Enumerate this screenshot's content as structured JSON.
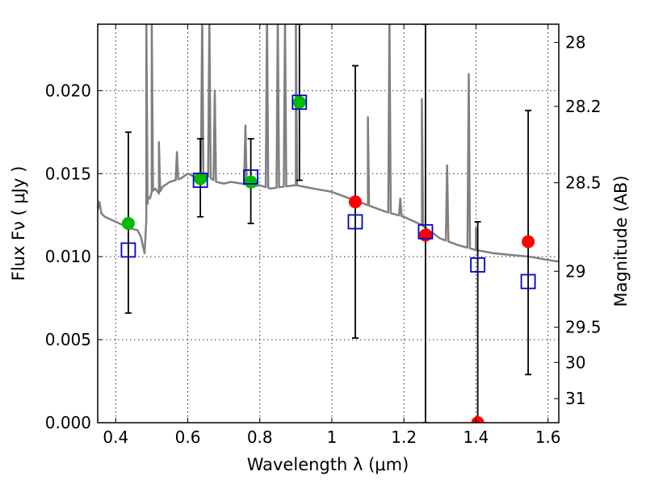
{
  "chart_data": {
    "type": "scatter",
    "title": "",
    "xlabel": "Wavelength  λ (μm)",
    "ylabel": "Flux  Fν  ( μJy )",
    "y2label": "Magnitude (AB)",
    "xlim": [
      0.35,
      1.63
    ],
    "ylim": [
      0.0,
      0.024
    ],
    "grid": true,
    "x_ticks": [
      "0.4",
      "0.6",
      "0.8",
      "1",
      "1.2",
      "1.4",
      "1.6"
    ],
    "x_tick_values": [
      0.4,
      0.6,
      0.8,
      1.0,
      1.2,
      1.4,
      1.6
    ],
    "y_ticks": [
      "0.000",
      "0.005",
      "0.010",
      "0.015",
      "0.020"
    ],
    "y_tick_values": [
      0.0,
      0.005,
      0.01,
      0.015,
      0.02
    ],
    "y2_ticks": [
      {
        "label": "28",
        "flux": 0.0229
      },
      {
        "label": "28.2",
        "flux": 0.01905
      },
      {
        "label": "28.5",
        "flux": 0.01445
      },
      {
        "label": "29",
        "flux": 0.00912
      },
      {
        "label": "29.5",
        "flux": 0.00575
      },
      {
        "label": "30",
        "flux": 0.00363
      },
      {
        "label": "31",
        "flux": 0.00145
      }
    ],
    "colors": {
      "model": "#808080",
      "detected": "#00bb00",
      "undetected": "#ff0000",
      "model_band": "#0000cc",
      "errorbar": "#000000"
    },
    "model_spectrum": {
      "x": [
        0.35,
        0.355,
        0.36,
        0.37,
        0.38,
        0.39,
        0.4,
        0.42,
        0.44,
        0.46,
        0.47,
        0.48,
        0.485,
        0.49,
        0.495,
        0.5,
        0.51,
        0.52,
        0.53,
        0.55,
        0.58,
        0.6,
        0.62,
        0.65,
        0.68,
        0.7,
        0.72,
        0.75,
        0.78,
        0.8,
        0.83,
        0.86,
        0.9,
        0.95,
        1.0,
        1.05,
        1.1,
        1.15,
        1.2,
        1.25,
        1.3,
        1.35,
        1.4,
        1.45,
        1.5,
        1.55,
        1.6,
        1.63
      ],
      "y": [
        0.0128,
        0.0133,
        0.0126,
        0.0124,
        0.0123,
        0.0122,
        0.0121,
        0.0119,
        0.0117,
        0.0116,
        0.0112,
        0.0102,
        0.0122,
        0.0136,
        0.0135,
        0.0139,
        0.0141,
        0.0138,
        0.0142,
        0.0145,
        0.0147,
        0.015,
        0.0148,
        0.0149,
        0.0145,
        0.0144,
        0.0145,
        0.0144,
        0.0142,
        0.0143,
        0.0141,
        0.0142,
        0.0143,
        0.0141,
        0.0139,
        0.0135,
        0.0131,
        0.0127,
        0.0124,
        0.0119,
        0.0111,
        0.0107,
        0.0104,
        0.0102,
        0.0101,
        0.01,
        0.0098,
        0.0097
      ],
      "lines": [
        {
          "x": 0.485,
          "peak": 0.0245
        },
        {
          "x": 0.5,
          "peak": 0.0245
        },
        {
          "x": 0.52,
          "peak": 0.0169
        },
        {
          "x": 0.57,
          "peak": 0.0163
        },
        {
          "x": 0.64,
          "peak": 0.0245
        },
        {
          "x": 0.66,
          "peak": 0.0245
        },
        {
          "x": 0.675,
          "peak": 0.02
        },
        {
          "x": 0.76,
          "peak": 0.0179
        },
        {
          "x": 0.82,
          "peak": 0.0245
        },
        {
          "x": 0.85,
          "peak": 0.0245
        },
        {
          "x": 0.87,
          "peak": 0.0245
        },
        {
          "x": 0.9,
          "peak": 0.0245
        },
        {
          "x": 1.1,
          "peak": 0.0184
        },
        {
          "x": 1.16,
          "peak": 0.0245
        },
        {
          "x": 1.19,
          "peak": 0.0135
        },
        {
          "x": 1.25,
          "peak": 0.0195
        },
        {
          "x": 1.32,
          "peak": 0.0155
        },
        {
          "x": 1.38,
          "peak": 0.021
        },
        {
          "x": 1.4,
          "peak": 0.0117
        }
      ]
    },
    "observed": [
      {
        "x": 0.435,
        "y": 0.012,
        "err_low": 0.0066,
        "err_high": 0.0175,
        "detected": true
      },
      {
        "x": 0.635,
        "y": 0.0147,
        "err_low": 0.0124,
        "err_high": 0.0171,
        "detected": true
      },
      {
        "x": 0.775,
        "y": 0.0145,
        "err_low": 0.012,
        "err_high": 0.0171,
        "detected": true
      },
      {
        "x": 0.91,
        "y": 0.0193,
        "err_low": 0.0146,
        "err_high": 0.024,
        "detected": true
      },
      {
        "x": 1.065,
        "y": 0.0133,
        "err_low": 0.0051,
        "err_high": 0.0215,
        "detected": false
      },
      {
        "x": 1.26,
        "y": 0.0113,
        "err_low": 0.0,
        "err_high": 0.024,
        "detected": false
      },
      {
        "x": 1.405,
        "y": 0.0,
        "err_low": 0.0,
        "err_high": 0.0121,
        "detected": false
      },
      {
        "x": 1.545,
        "y": 0.0109,
        "err_low": 0.0029,
        "err_high": 0.0188,
        "detected": false
      }
    ],
    "model_bands": [
      {
        "x": 0.435,
        "y": 0.0104
      },
      {
        "x": 0.635,
        "y": 0.0146
      },
      {
        "x": 0.775,
        "y": 0.0148
      },
      {
        "x": 0.91,
        "y": 0.0193
      },
      {
        "x": 1.065,
        "y": 0.0121
      },
      {
        "x": 1.26,
        "y": 0.0115
      },
      {
        "x": 1.405,
        "y": 0.0095
      },
      {
        "x": 1.545,
        "y": 0.0085
      }
    ]
  }
}
